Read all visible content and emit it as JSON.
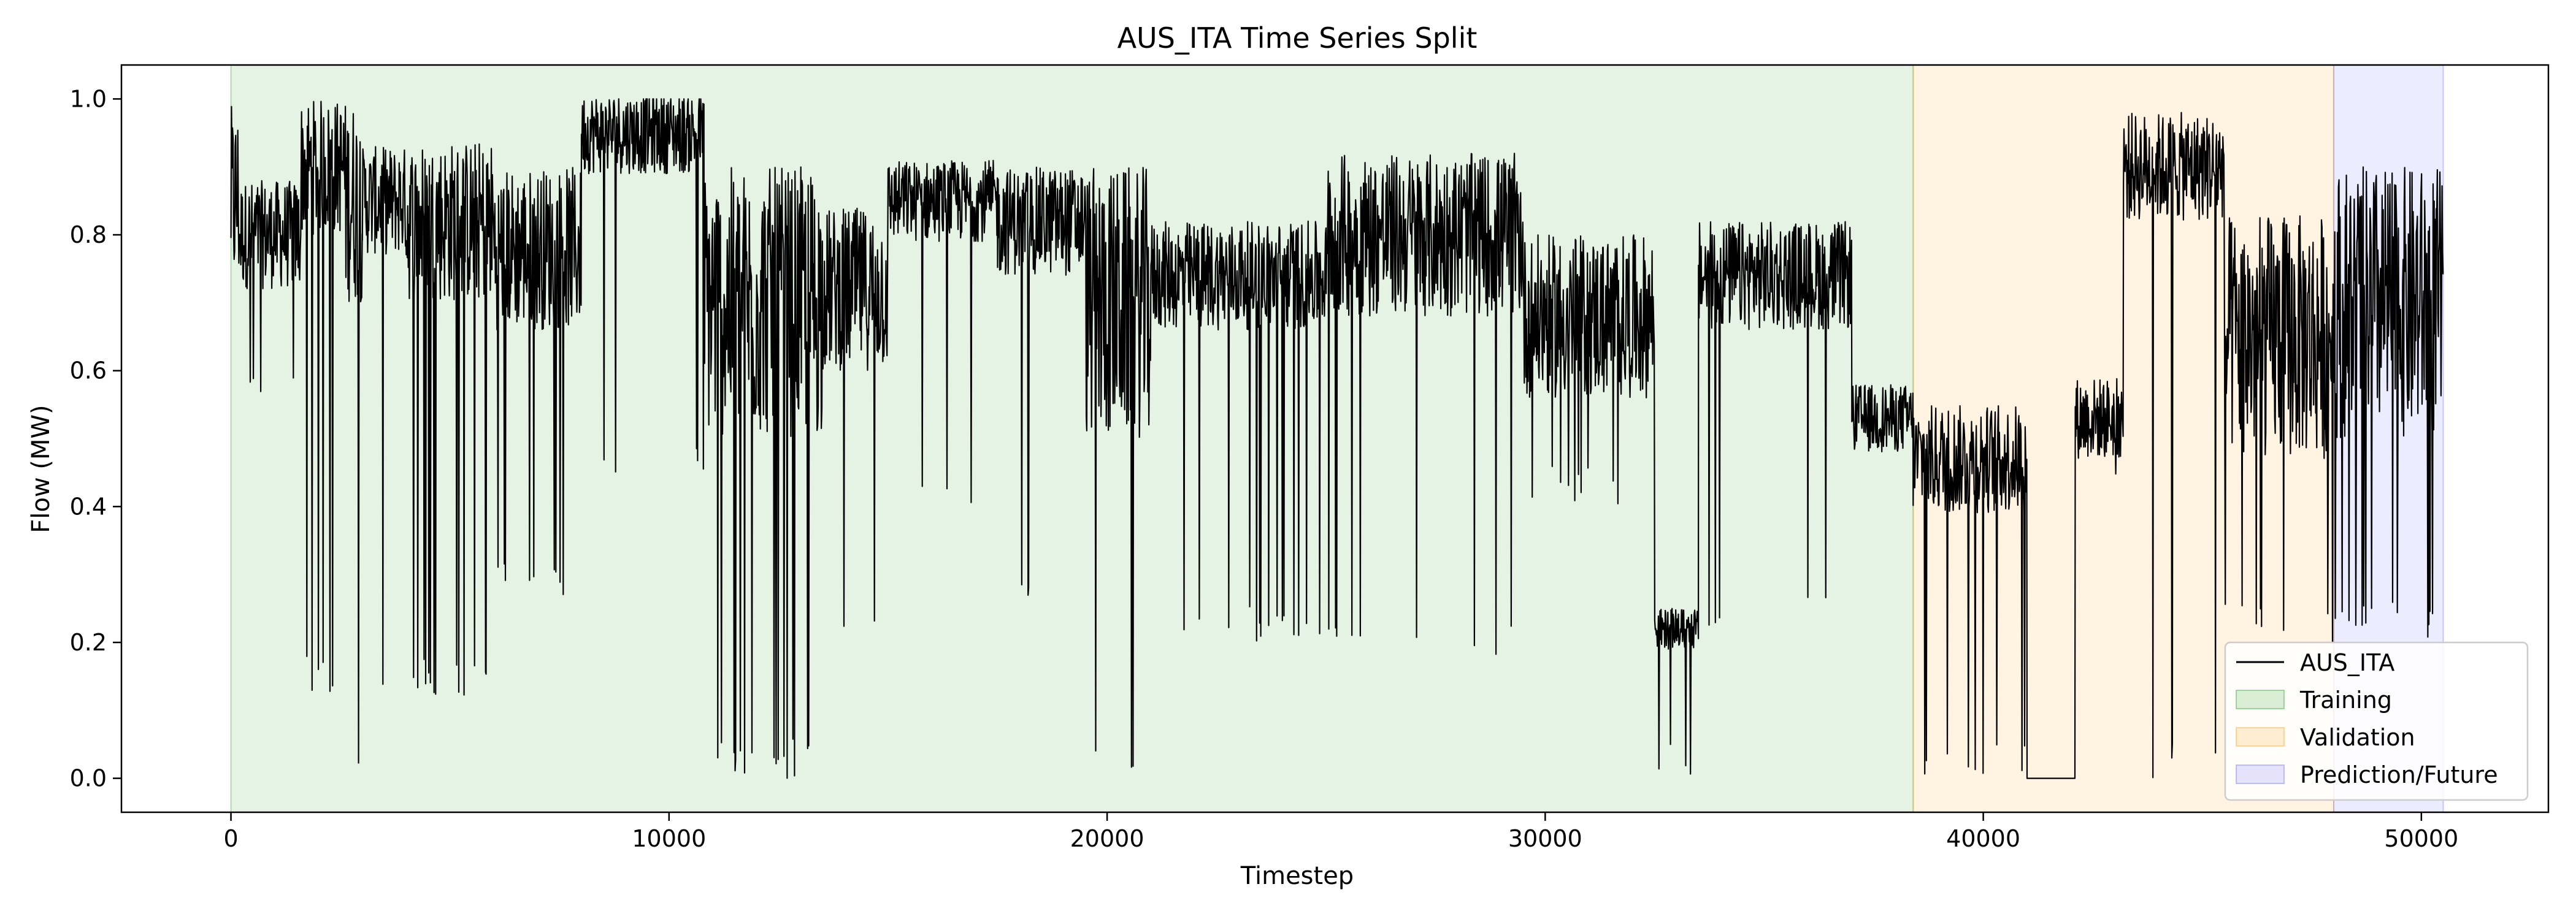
{
  "chart_data": {
    "type": "line",
    "title": "AUS_ITA Time Series Split",
    "xlabel": "Timestep",
    "ylabel": "Flow (MW)",
    "xlim": [
      -2500,
      52900
    ],
    "ylim": [
      -0.05,
      1.05
    ],
    "xticks": [
      0,
      10000,
      20000,
      30000,
      40000,
      50000
    ],
    "xtick_labels": [
      "0",
      "10000",
      "20000",
      "30000",
      "40000",
      "50000"
    ],
    "yticks": [
      0.0,
      0.2,
      0.4,
      0.6,
      0.8,
      1.0
    ],
    "ytick_labels": [
      "0.0",
      "0.2",
      "0.4",
      "0.6",
      "0.8",
      "1.0"
    ],
    "grid": false,
    "legend_position": "lower-right",
    "series": [
      {
        "name": "AUS_ITA",
        "color": "#000000"
      }
    ],
    "regions": [
      {
        "name": "Training",
        "x_start": 0,
        "x_end": 38400,
        "color": "#2ca02c"
      },
      {
        "name": "Validation",
        "x_start": 38400,
        "x_end": 48000,
        "color": "#ff9f1c"
      },
      {
        "name": "Prediction/Future",
        "x_start": 48000,
        "x_end": 50500,
        "color": "#6b6bff"
      }
    ],
    "segments": [
      {
        "x_start": 0,
        "x_end": 200,
        "center": 0.85,
        "spread": 0.14,
        "dip_to": 0.45,
        "dip_prob": 0.08
      },
      {
        "x_start": 200,
        "x_end": 1600,
        "center": 0.8,
        "spread": 0.08,
        "dip_to": 0.55,
        "dip_prob": 0.03
      },
      {
        "x_start": 1600,
        "x_end": 2600,
        "center": 0.9,
        "spread": 0.1,
        "dip_to": 0.12,
        "dip_prob": 0.05
      },
      {
        "x_start": 2600,
        "x_end": 3000,
        "center": 0.85,
        "spread": 0.15,
        "dip_to": 0.0,
        "dip_prob": 0.06
      },
      {
        "x_start": 3000,
        "x_end": 4000,
        "center": 0.85,
        "spread": 0.08,
        "dip_to": 0.12,
        "dip_prob": 0.05
      },
      {
        "x_start": 4000,
        "x_end": 6000,
        "center": 0.82,
        "spread": 0.12,
        "dip_to": 0.12,
        "dip_prob": 0.05
      },
      {
        "x_start": 6000,
        "x_end": 8000,
        "center": 0.78,
        "spread": 0.12,
        "dip_to": 0.26,
        "dip_prob": 0.04
      },
      {
        "x_start": 8000,
        "x_end": 10800,
        "center": 0.95,
        "spread": 0.06,
        "dip_to": 0.45,
        "dip_prob": 0.03
      },
      {
        "x_start": 10800,
        "x_end": 13500,
        "center": 0.7,
        "spread": 0.2,
        "dip_to": 0.0,
        "dip_prob": 0.07
      },
      {
        "x_start": 13500,
        "x_end": 15000,
        "center": 0.72,
        "spread": 0.12,
        "dip_to": 0.18,
        "dip_prob": 0.04
      },
      {
        "x_start": 15000,
        "x_end": 17500,
        "center": 0.85,
        "spread": 0.06,
        "dip_to": 0.4,
        "dip_prob": 0.02
      },
      {
        "x_start": 17500,
        "x_end": 19500,
        "center": 0.82,
        "spread": 0.08,
        "dip_to": 0.23,
        "dip_prob": 0.03
      },
      {
        "x_start": 19500,
        "x_end": 21000,
        "center": 0.7,
        "spread": 0.2,
        "dip_to": 0.0,
        "dip_prob": 0.05
      },
      {
        "x_start": 21000,
        "x_end": 25000,
        "center": 0.74,
        "spread": 0.08,
        "dip_to": 0.2,
        "dip_prob": 0.03
      },
      {
        "x_start": 25000,
        "x_end": 29500,
        "center": 0.8,
        "spread": 0.12,
        "dip_to": 0.18,
        "dip_prob": 0.02
      },
      {
        "x_start": 29500,
        "x_end": 32500,
        "center": 0.68,
        "spread": 0.12,
        "dip_to": 0.4,
        "dip_prob": 0.03
      },
      {
        "x_start": 32500,
        "x_end": 33500,
        "center": 0.22,
        "spread": 0.03,
        "dip_to": 0.0,
        "dip_prob": 0.02
      },
      {
        "x_start": 33500,
        "x_end": 37000,
        "center": 0.74,
        "spread": 0.08,
        "dip_to": 0.21,
        "dip_prob": 0.01
      },
      {
        "x_start": 37000,
        "x_end": 38400,
        "center": 0.53,
        "spread": 0.05,
        "dip_to": 0.45,
        "dip_prob": 0.01
      },
      {
        "x_start": 38400,
        "x_end": 41000,
        "center": 0.47,
        "spread": 0.08,
        "dip_to": 0.0,
        "dip_prob": 0.03
      },
      {
        "x_start": 41000,
        "x_end": 42100,
        "center": 0.0,
        "spread": 0.0,
        "dip_to": 0.0,
        "dip_prob": 0.0
      },
      {
        "x_start": 42100,
        "x_end": 43200,
        "center": 0.53,
        "spread": 0.06,
        "dip_to": 0.4,
        "dip_prob": 0.02
      },
      {
        "x_start": 43200,
        "x_end": 45500,
        "center": 0.9,
        "spread": 0.08,
        "dip_to": 0.0,
        "dip_prob": 0.02
      },
      {
        "x_start": 45500,
        "x_end": 48000,
        "center": 0.65,
        "spread": 0.18,
        "dip_to": 0.2,
        "dip_prob": 0.04
      },
      {
        "x_start": 48000,
        "x_end": 50500,
        "center": 0.7,
        "spread": 0.2,
        "dip_to": 0.2,
        "dip_prob": 0.05
      }
    ]
  }
}
